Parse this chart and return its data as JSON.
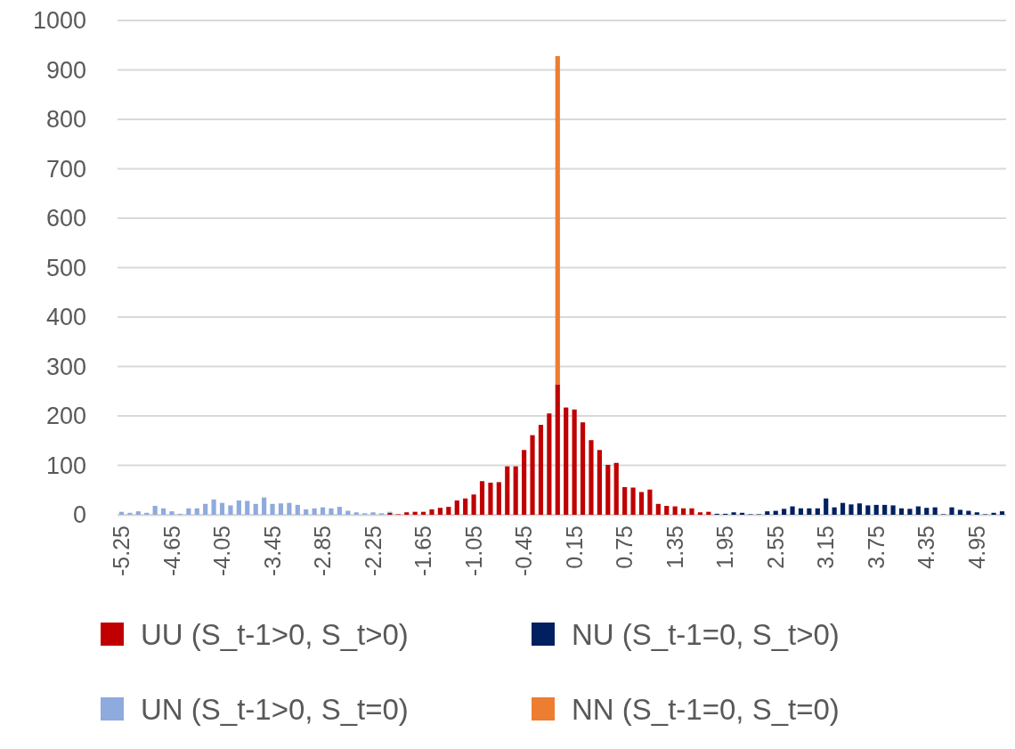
{
  "chart_data": {
    "type": "bar",
    "stacked": true,
    "categories": [
      "-5.25",
      null,
      null,
      null,
      null,
      null,
      "-4.65",
      null,
      null,
      null,
      null,
      null,
      "-4.05",
      null,
      null,
      null,
      null,
      null,
      "-3.45",
      null,
      null,
      null,
      null,
      null,
      "-2.85",
      null,
      null,
      null,
      null,
      null,
      "-2.25",
      null,
      null,
      null,
      null,
      null,
      "-1.65",
      null,
      null,
      null,
      null,
      null,
      "-1.05",
      null,
      null,
      null,
      null,
      null,
      "-0.45",
      null,
      null,
      null,
      null,
      null,
      "0.15",
      null,
      null,
      null,
      null,
      null,
      "0.75",
      null,
      null,
      null,
      null,
      null,
      "1.35",
      null,
      null,
      null,
      null,
      null,
      "1.95",
      null,
      null,
      null,
      null,
      null,
      "2.55",
      null,
      null,
      null,
      null,
      null,
      "3.15",
      null,
      null,
      null,
      null,
      null,
      "3.75",
      null,
      null,
      null,
      null,
      null,
      "4.35",
      null,
      null,
      null,
      null,
      null,
      "4.95",
      null,
      null,
      null
    ],
    "series": [
      {
        "name": "UU (S_t-1>0, S_t>0)",
        "color": "#c00000",
        "values": [
          null,
          null,
          null,
          null,
          null,
          null,
          null,
          null,
          null,
          null,
          null,
          null,
          null,
          null,
          null,
          null,
          null,
          null,
          null,
          null,
          null,
          null,
          null,
          null,
          null,
          null,
          null,
          null,
          null,
          null,
          null,
          null,
          4,
          1,
          5,
          6,
          6,
          11,
          14,
          16,
          29,
          33,
          41,
          68,
          65,
          66,
          98,
          98,
          131,
          161,
          182,
          205,
          264,
          217,
          213,
          187,
          151,
          131,
          101,
          105,
          56,
          55,
          46,
          51,
          22,
          18,
          17,
          13,
          13,
          5,
          6,
          null,
          null,
          null,
          null,
          null,
          null,
          null,
          null,
          null,
          null,
          null,
          null,
          null,
          null,
          null,
          null,
          null,
          null,
          null,
          null,
          null,
          null,
          null,
          null,
          null,
          null,
          null,
          null,
          null,
          null,
          null,
          null,
          null,
          null,
          null
        ]
      },
      {
        "name": "NU (S_t-1=0, S_t>0)",
        "color": "#002060",
        "values": [
          null,
          null,
          null,
          null,
          null,
          null,
          null,
          null,
          null,
          null,
          null,
          null,
          null,
          null,
          null,
          null,
          null,
          null,
          null,
          null,
          null,
          null,
          null,
          null,
          null,
          null,
          null,
          null,
          null,
          null,
          null,
          null,
          null,
          null,
          null,
          null,
          null,
          null,
          null,
          null,
          null,
          null,
          null,
          null,
          null,
          null,
          null,
          null,
          null,
          null,
          null,
          null,
          null,
          null,
          null,
          null,
          null,
          null,
          null,
          null,
          null,
          null,
          null,
          null,
          null,
          null,
          null,
          null,
          null,
          null,
          null,
          2,
          2,
          5,
          4,
          1,
          1,
          7,
          8,
          12,
          17,
          13,
          13,
          13,
          33,
          15,
          24,
          21,
          23,
          19,
          20,
          20,
          19,
          13,
          12,
          17,
          14,
          15,
          1,
          15,
          10,
          8,
          5,
          1,
          4,
          7
        ]
      },
      {
        "name": "UN (S_t-1>0, S_t=0)",
        "color": "#8faadc",
        "values": [
          6,
          4,
          7,
          4,
          18,
          13,
          7,
          2,
          13,
          13,
          22,
          31,
          24,
          19,
          29,
          28,
          22,
          35,
          22,
          23,
          24,
          20,
          11,
          13,
          15,
          13,
          16,
          8,
          5,
          3,
          5,
          3,
          2,
          null,
          null,
          null,
          null,
          null,
          null,
          null,
          null,
          null,
          null,
          null,
          null,
          null,
          null,
          null,
          null,
          null,
          null,
          null,
          null,
          null,
          null,
          null,
          null,
          null,
          null,
          null,
          null,
          null,
          null,
          null,
          null,
          null,
          null,
          null,
          null,
          null,
          null,
          null,
          null,
          null,
          null,
          null,
          null,
          null,
          null,
          null,
          null,
          null,
          null,
          null,
          null,
          null,
          null,
          null,
          null,
          null,
          null,
          null,
          null,
          null,
          null,
          null,
          null,
          null,
          null,
          null,
          null,
          null,
          null,
          null,
          null,
          null
        ]
      },
      {
        "name": "NN (S_t-1=0, S_t=0)",
        "color": "#ed7d31",
        "values": [
          null,
          null,
          null,
          null,
          null,
          null,
          null,
          null,
          null,
          null,
          null,
          null,
          null,
          null,
          null,
          null,
          null,
          null,
          null,
          null,
          null,
          null,
          null,
          null,
          null,
          null,
          null,
          null,
          null,
          null,
          null,
          null,
          null,
          null,
          null,
          null,
          null,
          null,
          null,
          null,
          null,
          null,
          null,
          null,
          null,
          null,
          null,
          null,
          null,
          null,
          null,
          null,
          664,
          null,
          null,
          null,
          null,
          null,
          null,
          null,
          null,
          null,
          null,
          null,
          null,
          null,
          null,
          null,
          null,
          null,
          null,
          null,
          null,
          null,
          null,
          null,
          null,
          null,
          null,
          null,
          null,
          null,
          null,
          null,
          null,
          null,
          null,
          null,
          null,
          null,
          null,
          null,
          null,
          null,
          null,
          null,
          null,
          null,
          null,
          null,
          null,
          null,
          null,
          null,
          null,
          null
        ]
      }
    ],
    "ylim": [
      0,
      1000
    ],
    "yticks": [
      0,
      100,
      200,
      300,
      400,
      500,
      600,
      700,
      800,
      900,
      1000
    ],
    "grid": "y",
    "legend": "bottom"
  }
}
